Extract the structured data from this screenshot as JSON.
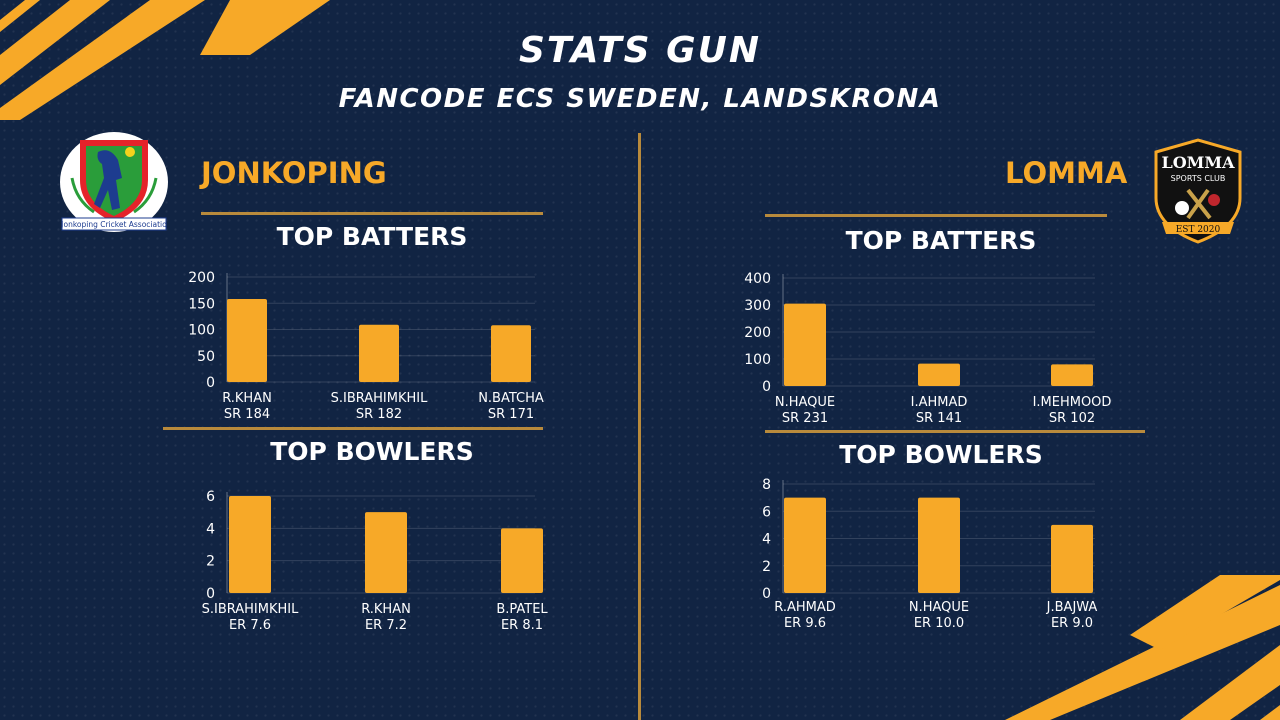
{
  "header": {
    "title": "STATS GUN",
    "subtitle": "FANCODE ECS SWEDEN, LANDSKRONA"
  },
  "colors": {
    "accent": "#f7a928",
    "background": "#112443",
    "rule": "#b88a3c"
  },
  "teams": {
    "left": {
      "name": "JONKOPING",
      "logo_text": "Jonkoping Cricket Associatio",
      "batters_title": "TOP BATTERS",
      "bowlers_title": "TOP BOWLERS"
    },
    "right": {
      "name": "LOMMA",
      "logo_text": {
        "line1": "LOMMA",
        "line2": "SPORTS CLUB",
        "est": "EST 2020"
      },
      "batters_title": "TOP BATTERS",
      "bowlers_title": "TOP BOWLERS"
    }
  },
  "chart_data": [
    {
      "type": "bar",
      "team": "JONKOPING",
      "title": "TOP BATTERS",
      "categories": [
        "R.KHAN",
        "S.IBRAHIMKHIL",
        "N.BATCHA"
      ],
      "sublabels": [
        "SR 184",
        "SR 182",
        "SR 171"
      ],
      "values": [
        158,
        109,
        108
      ],
      "ylim": [
        0,
        200
      ],
      "yticks": [
        0,
        50,
        100,
        150,
        200
      ],
      "grid": true,
      "color": "#f7a928"
    },
    {
      "type": "bar",
      "team": "JONKOPING",
      "title": "TOP BOWLERS",
      "categories": [
        "S.IBRAHIMKHIL",
        "R.KHAN",
        "B.PATEL"
      ],
      "sublabels": [
        "ER 7.6",
        "ER 7.2",
        "ER 8.1"
      ],
      "values": [
        6,
        5,
        4
      ],
      "ylim": [
        0,
        6
      ],
      "yticks": [
        0,
        2,
        4,
        6
      ],
      "grid": true,
      "color": "#f7a928"
    },
    {
      "type": "bar",
      "team": "LOMMA",
      "title": "TOP BATTERS",
      "categories": [
        "N.HAQUE",
        "I.AHMAD",
        "I.MEHMOOD"
      ],
      "sublabels": [
        "SR 231",
        "SR 141",
        "SR 102"
      ],
      "values": [
        305,
        83,
        80
      ],
      "ylim": [
        0,
        400
      ],
      "yticks": [
        0,
        100,
        200,
        300,
        400
      ],
      "grid": true,
      "color": "#f7a928"
    },
    {
      "type": "bar",
      "team": "LOMMA",
      "title": "TOP BOWLERS",
      "categories": [
        "R.AHMAD",
        "N.HAQUE",
        "J.BAJWA"
      ],
      "sublabels": [
        "ER 9.6",
        "ER 10.0",
        "ER 9.0"
      ],
      "values": [
        7,
        7,
        5
      ],
      "ylim": [
        0,
        8
      ],
      "yticks": [
        0,
        2,
        4,
        6,
        8
      ],
      "grid": true,
      "color": "#f7a928"
    }
  ]
}
